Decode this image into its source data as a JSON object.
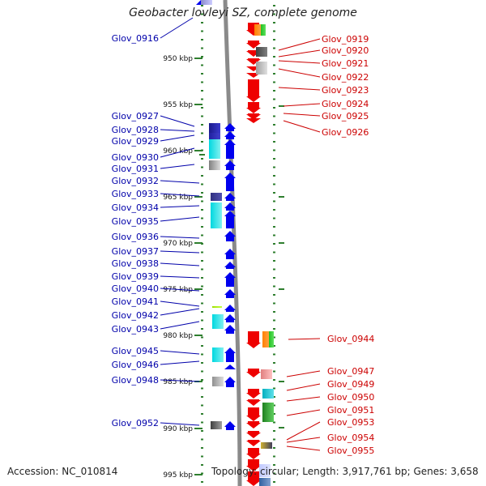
{
  "title": "Geobacter lovleyi SZ, complete genome",
  "accession_text": "Accession: NC_010814",
  "stats_text": "Topology: circular; Length: 3,917,761 bp; Genes: 3,658",
  "colors": {
    "left_label": "#0000aa",
    "right_label": "#cc0000",
    "tick": "#2f7f2f",
    "backbone": "#8a8a8a",
    "forward_gene": "#0000ee",
    "reverse_gene": "#ee0000"
  },
  "kbp_ticks": [
    "950 kbp",
    "955 kbp",
    "960 kbp",
    "965 kbp",
    "970 kbp",
    "975 kbp",
    "980 kbp",
    "985 kbp",
    "990 kbp",
    "995 kbp"
  ],
  "left_labels": [
    "Glov_0916",
    "Glov_0927",
    "Glov_0928",
    "Glov_0929",
    "Glov_0930",
    "Glov_0931",
    "Glov_0932",
    "Glov_0933",
    "Glov_0934",
    "Glov_0935",
    "Glov_0936",
    "Glov_0937",
    "Glov_0938",
    "Glov_0939",
    "Glov_0940",
    "Glov_0941",
    "Glov_0942",
    "Glov_0943",
    "Glov_0945",
    "Glov_0946",
    "Glov_0948",
    "Glov_0952"
  ],
  "right_labels": [
    "Glov_0919",
    "Glov_0920",
    "Glov_0921",
    "Glov_0922",
    "Glov_0923",
    "Glov_0924",
    "Glov_0925",
    "Glov_0926",
    "Glov_0944",
    "Glov_0947",
    "Glov_0949",
    "Glov_0950",
    "Glov_0951",
    "Glov_0953",
    "Glov_0954",
    "Glov_0955"
  ]
}
